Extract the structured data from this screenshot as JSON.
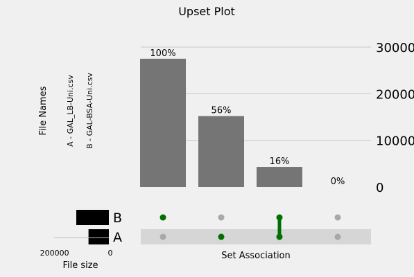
{
  "chart_data": {
    "type": "bar",
    "title": "Upset Plot",
    "ylabel_left": "File Names",
    "file_labels": [
      "A - GAL_LB-Uni.csv",
      "B - GAL-BSA-Uni.csv"
    ],
    "intersections": [
      {
        "label": "B only",
        "members": [
          "B"
        ],
        "value": 27500,
        "pct_label": "100%"
      },
      {
        "label": "A only",
        "members": [
          "A"
        ],
        "value": 15200,
        "pct_label": "56%"
      },
      {
        "label": "A and B",
        "members": [
          "A",
          "B"
        ],
        "value": 4300,
        "pct_label": "16%"
      },
      {
        "label": "none",
        "members": [],
        "value": 0,
        "pct_label": "0%"
      }
    ],
    "ylim": [
      0,
      30000
    ],
    "yticks": [
      "30000",
      "20000",
      "10000",
      "0"
    ],
    "ytick_values": [
      30000,
      20000,
      10000,
      0
    ],
    "grid": true,
    "sets": [
      {
        "name": "B",
        "size": 120000
      },
      {
        "name": "A",
        "size": 75000
      }
    ],
    "set_size_label": "File size",
    "set_size_ticks": [
      "200000",
      "0"
    ],
    "set_size_tick_values": [
      200000,
      0
    ],
    "set_size_max": 240000,
    "xlabel": "Set Association",
    "colors": {
      "bar": "#757575",
      "active_dot": "#007000",
      "inactive_dot": "#a8a8a8",
      "stripe": "#d6d6d6",
      "grid": "#c8c8c8",
      "set_bar": "#000000"
    }
  }
}
